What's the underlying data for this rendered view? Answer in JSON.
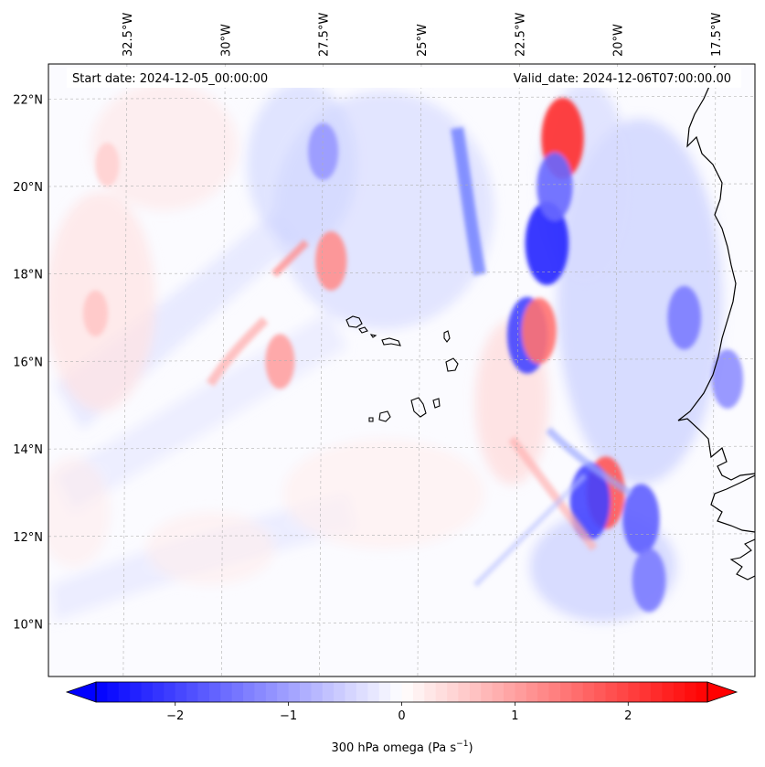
{
  "header": {
    "start_date": "Start date: 2024-12-05_00:00:00",
    "valid_date": "Valid_date: 2024-12-06T07:00:00.00"
  },
  "axes": {
    "lon_min": -34.5,
    "lon_max": -16.5,
    "lat_min": 8.8,
    "lat_max": 22.8,
    "lon_ticks": [
      {
        "value": -32.5,
        "label": "32.5°W"
      },
      {
        "value": -30.0,
        "label": "30°W"
      },
      {
        "value": -27.5,
        "label": "27.5°W"
      },
      {
        "value": -25.0,
        "label": "25°W"
      },
      {
        "value": -22.5,
        "label": "22.5°W"
      },
      {
        "value": -20.0,
        "label": "20°W"
      },
      {
        "value": -17.5,
        "label": "17.5°W"
      }
    ],
    "lat_ticks": [
      {
        "value": 10,
        "label": "10°N"
      },
      {
        "value": 12,
        "label": "12°N"
      },
      {
        "value": 14,
        "label": "14°N"
      },
      {
        "value": 16,
        "label": "16°N"
      },
      {
        "value": 18,
        "label": "18°N"
      },
      {
        "value": 20,
        "label": "20°N"
      },
      {
        "value": 22,
        "label": "22°N"
      }
    ],
    "gridlines": true
  },
  "colorbar": {
    "label": "300 hPa omega (Pa s",
    "label_sup": "−1",
    "label_close": ")",
    "min": -2.7,
    "max": 2.7,
    "extend": "both",
    "ticks": [
      {
        "value": -2,
        "label": "−2"
      },
      {
        "value": -1,
        "label": "−1"
      },
      {
        "value": 0,
        "label": "0"
      },
      {
        "value": 1,
        "label": "1"
      },
      {
        "value": 2,
        "label": "2"
      }
    ]
  },
  "colors": {
    "negative": "#0000ff",
    "neutral": "#ffffff",
    "positive": "#ff0000",
    "coastline": "#000000"
  },
  "features": [
    {
      "kind": "descent",
      "lon": -21.4,
      "lat": 21.1,
      "value": 2.2
    },
    {
      "kind": "ascent",
      "lon": -21.8,
      "lat": 18.7,
      "value": -2.3
    },
    {
      "kind": "ascent",
      "lon": -21.6,
      "lat": 20.0,
      "value": -1.6
    },
    {
      "kind": "ascent",
      "lon": -22.3,
      "lat": 16.6,
      "value": -2.0
    },
    {
      "kind": "descent",
      "lon": -22.0,
      "lat": 16.7,
      "value": 1.5
    },
    {
      "kind": "descent",
      "lon": -20.3,
      "lat": 13.0,
      "value": 1.8
    },
    {
      "kind": "ascent",
      "lon": -20.7,
      "lat": 12.8,
      "value": -2.0
    },
    {
      "kind": "ascent",
      "lon": -19.4,
      "lat": 12.4,
      "value": -1.7
    },
    {
      "kind": "ascent",
      "lon": -19.2,
      "lat": 11.0,
      "value": -1.4
    },
    {
      "kind": "descent",
      "lon": -28.6,
      "lat": 16.0,
      "value": 1.0
    },
    {
      "kind": "descent",
      "lon": -27.3,
      "lat": 18.3,
      "value": 1.2
    },
    {
      "kind": "ascent",
      "lon": -27.5,
      "lat": 20.8,
      "value": -1.1
    },
    {
      "kind": "ascent",
      "lon": -18.3,
      "lat": 17.0,
      "value": -1.4
    },
    {
      "kind": "ascent",
      "lon": -17.2,
      "lat": 15.6,
      "value": -1.2
    },
    {
      "kind": "descent",
      "lon": -33.3,
      "lat": 17.1,
      "value": 0.6
    },
    {
      "kind": "descent",
      "lon": -33.0,
      "lat": 20.5,
      "value": 0.5
    }
  ]
}
